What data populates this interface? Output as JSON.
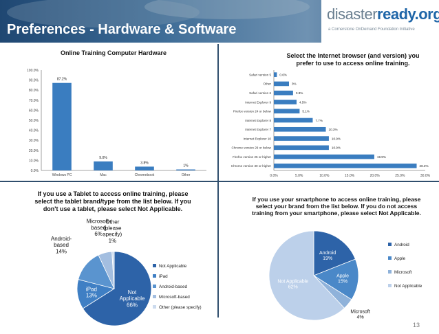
{
  "slide": {
    "title": "Preferences - Hardware & Software",
    "page_number": "13",
    "logo": {
      "prefix": "disaster",
      "brand": "ready.org",
      "tagline": "a Cornerstone OnDemand Foundation Initiative"
    }
  },
  "chart_data": [
    {
      "type": "bar",
      "title": "Online Training Computer Hardware",
      "categories": [
        "Windows PC",
        "Mac",
        "Chromebook",
        "Other"
      ],
      "values": [
        87.2,
        9.0,
        3.8,
        1.0
      ],
      "value_labels": [
        "87.2%",
        "9.0%",
        "3.8%",
        "1%"
      ],
      "ylim": [
        0,
        100
      ],
      "yticks": [
        "0.0%",
        "10.0%",
        "20.0%",
        "30.0%",
        "40.0%",
        "50.0%",
        "60.0%",
        "70.0%",
        "80.0%",
        "90.0%",
        "100.0%"
      ],
      "grid": false,
      "color": "#3a7dc0"
    },
    {
      "type": "bar",
      "orientation": "horizontal",
      "title": "Select the Internet browser (and version) you prefer to use to access online training.",
      "categories": [
        "Safari version 5",
        "Other",
        "Safari version 6",
        "Internet Explorer 9",
        "Firefox version 24 or below",
        "Internet Explorer 8",
        "Internet Explorer 7",
        "Internet Explorer 10",
        "Chrome version 29 or below",
        "Firefox version 25 or higher",
        "Chrome version 30 or higher"
      ],
      "values": [
        0.6,
        3.0,
        3.8,
        4.5,
        5.1,
        7.7,
        10.3,
        10.9,
        10.9,
        19.9,
        28.3
      ],
      "value_labels": [
        "0.6%",
        "3%",
        "3.8%",
        "4.5%",
        "5.1%",
        "7.7%",
        "10.3%",
        "10.9%",
        "10.9%",
        "19.9%",
        "28.3%"
      ],
      "xlim": [
        0,
        30
      ],
      "xticks": [
        "0.0%",
        "5.0%",
        "10.0%",
        "15.0%",
        "20.0%",
        "25.0%",
        "30.0%"
      ],
      "grid": false,
      "color": "#3a7dc0"
    },
    {
      "type": "pie",
      "title": "If you use a Tablet to access online training, please select the tablet brand/type from the list below. If you don't use a tablet, please select Not Applicable.",
      "slices": [
        {
          "name": "Not Applicable",
          "value": 66,
          "label_lines": [
            "Not",
            "Applicable",
            "66%"
          ],
          "color": "#2d63a8"
        },
        {
          "name": "iPad",
          "value": 13,
          "label_lines": [
            "iPad",
            "13%"
          ],
          "color": "#3f7fc4"
        },
        {
          "name": "Android-based",
          "value": 14,
          "label_lines": [
            "Android-",
            "based",
            "14%"
          ],
          "color": "#5a94cf"
        },
        {
          "name": "Microsoft-based",
          "value": 6,
          "label_lines": [
            "Microsoft-",
            "based",
            "6%"
          ],
          "color": "#a3bee0"
        },
        {
          "name": "Other (please specify)",
          "value": 1,
          "label_lines": [
            "Other",
            "(please",
            "specify)",
            "1%"
          ],
          "color": "#ccdbee"
        }
      ],
      "legend": [
        "Not Applicable",
        "iPad",
        "Android-based",
        "Microsoft-based",
        "Other (please specify)"
      ],
      "legend_position": "right"
    },
    {
      "type": "pie",
      "title": "If you use your smartphone to access online training, please select your brand from the list below. If you do not access training from your smartphone, please select Not Applicable.",
      "slices": [
        {
          "name": "Android",
          "value": 19,
          "label_lines": [
            "Android",
            "19%"
          ],
          "color": "#2d63a8"
        },
        {
          "name": "Apple",
          "value": 15,
          "label_lines": [
            "Apple",
            "15%"
          ],
          "color": "#4a88c8"
        },
        {
          "name": "Microsoft",
          "value": 4,
          "label_lines": [
            "Microsoft",
            "4%"
          ],
          "color": "#8fb2da"
        },
        {
          "name": "Not Applicable",
          "value": 62,
          "label_lines": [
            "Not Applicable",
            "62%"
          ],
          "color": "#bcd0ea"
        }
      ],
      "legend": [
        "Android",
        "Apple",
        "Microsoft",
        "Not Applicable"
      ],
      "legend_position": "right"
    }
  ]
}
